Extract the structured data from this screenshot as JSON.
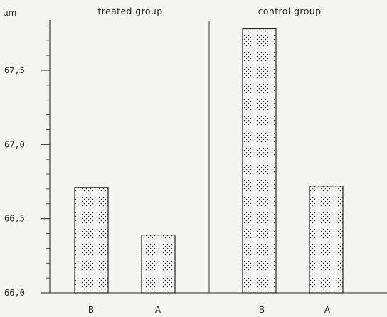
{
  "chart_data": {
    "type": "bar",
    "unit": "µm",
    "groups": [
      {
        "title": "treated group",
        "categories": [
          "B",
          "A"
        ],
        "values": [
          66.71,
          66.39
        ]
      },
      {
        "title": "control group",
        "categories": [
          "B",
          "A"
        ],
        "values": [
          67.78,
          66.72
        ]
      }
    ],
    "ylim": [
      66.0,
      67.84
    ],
    "yticks": [
      {
        "value": 66.0,
        "label": "66,0"
      },
      {
        "value": 66.5,
        "label": "66,5"
      },
      {
        "value": 67.0,
        "label": "67,0"
      },
      {
        "value": 67.5,
        "label": "67,5"
      }
    ],
    "minor_tick_step": 0.1,
    "bar_pattern": "stippled",
    "grid": false,
    "legend": "none"
  }
}
